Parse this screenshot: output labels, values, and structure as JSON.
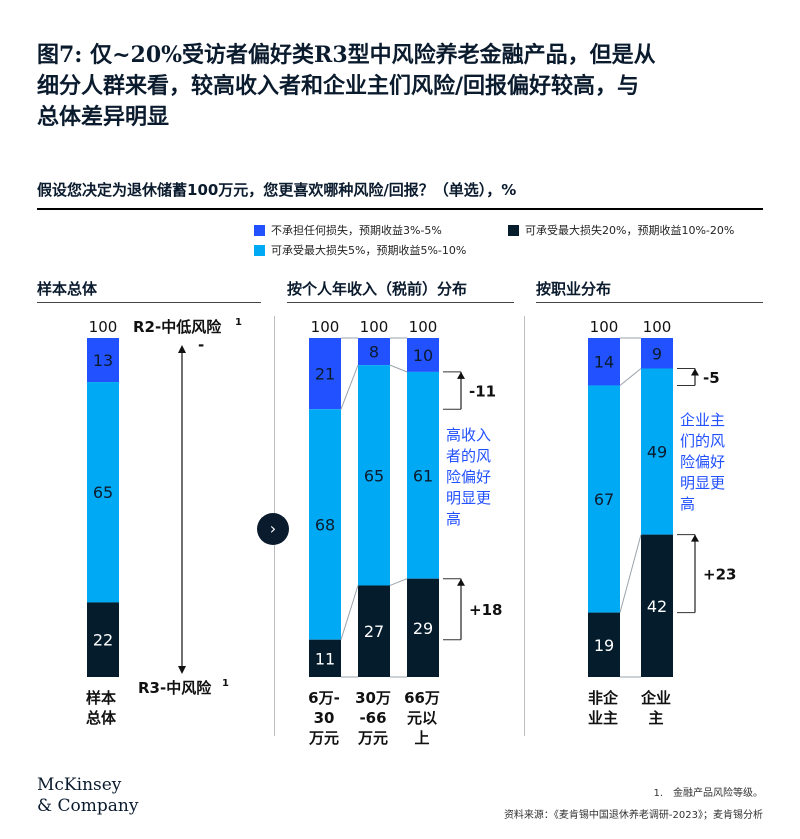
{
  "title_lines": [
    "图7: 仅~20%受访者偏好类R3型中风险养老金融产品，但是从",
    "细分人群来看，较高收入者和企业主们风险/回报偏好较高，与",
    "总体差异明显"
  ],
  "question": "假设您决定为退休储蓄100万元，您更喜欢哪种风险/回报？（单选），%",
  "legend": [
    {
      "label": "不承担任何损失，预期收益3%-5%",
      "color": "#2251ff"
    },
    {
      "label": "可承受最大损失20%，预期收益10%-20%",
      "color": "#051c2c"
    },
    {
      "label": "可承受最大损失5%，预期收益5%-10%",
      "color": "#00a9f4"
    }
  ],
  "sections": [
    "样本总体",
    "按个人年收入（税前）分布",
    "按职业分布"
  ],
  "circle_glyph": "›",
  "annotations": {
    "r2_label": "R2-中低风险",
    "r2_sup": "1",
    "r2_dash": "-",
    "r3_label": "R3-中风险",
    "r3_sup": "1",
    "income_note": [
      "高收入",
      "者的风",
      "险偏好",
      "明显更",
      "高"
    ],
    "occupation_note": [
      "企业主",
      "们的风",
      "险偏好",
      "明显更",
      "高"
    ],
    "income_diff_top": "-11",
    "income_diff_bottom": "+18",
    "occupation_diff_top": "-5",
    "occupation_diff_bottom": "+23"
  },
  "chart_data": {
    "type": "bar",
    "stacked": true,
    "unit": "%",
    "title": "",
    "categories": [
      "样本总体",
      "6万-30万元",
      "30万-66万元",
      "66万元以上",
      "非企业主",
      "企业主"
    ],
    "category_lines": [
      [
        "样本",
        "总体"
      ],
      [
        "6万-",
        "30",
        "万元"
      ],
      [
        "30万",
        "-66",
        "万元"
      ],
      [
        "66万",
        "元以",
        "上"
      ],
      [
        "非企",
        "业主"
      ],
      [
        "企业",
        "主"
      ]
    ],
    "totals": [
      100,
      100,
      100,
      100,
      100,
      100
    ],
    "series": [
      {
        "name": "不承担任何损失，预期收益3%-5%",
        "color": "#2251ff",
        "values": [
          13,
          21,
          8,
          10,
          14,
          9
        ]
      },
      {
        "name": "可承受最大损失5%，预期收益5%-10%",
        "color": "#00a9f4",
        "values": [
          65,
          68,
          65,
          61,
          67,
          49
        ]
      },
      {
        "name": "可承受最大损失20%，预期收益10%-20%",
        "color": "#051c2c",
        "values": [
          22,
          11,
          27,
          29,
          19,
          42
        ]
      }
    ]
  },
  "logo_lines": [
    "McKinsey",
    "& Company"
  ],
  "footnote": "1.　金融产品风险等级。",
  "source": "资料来源：《麦肯锡中国退休养老调研-2023》；麦肯锡分析"
}
